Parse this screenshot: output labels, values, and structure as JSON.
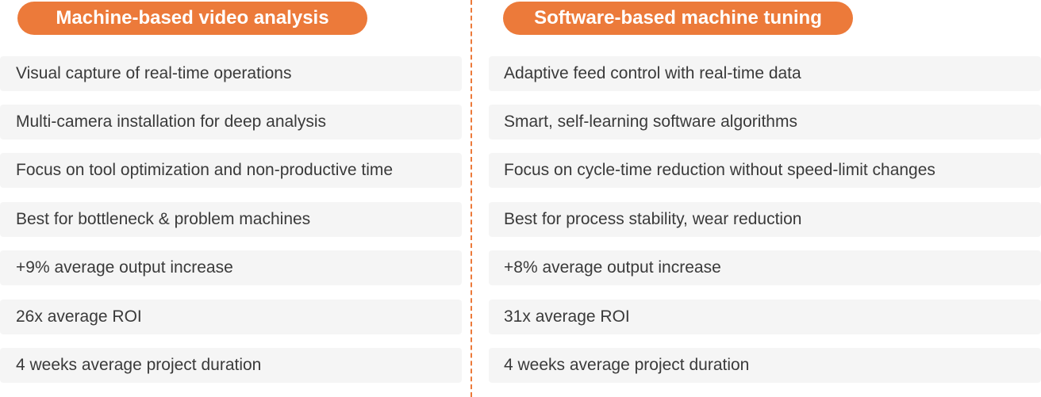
{
  "left": {
    "title": "Machine-based video analysis",
    "items": [
      "Visual capture of real-time operations",
      "Multi-camera installation for deep analysis",
      "Focus on tool optimization and non-productive time",
      "Best for bottleneck & problem machines",
      "+9% average output increase",
      "26x average ROI",
      "4 weeks average project duration"
    ]
  },
  "right": {
    "title": "Software-based machine tuning",
    "items": [
      "Adaptive feed control with real-time data",
      "Smart, self-learning software algorithms",
      "Focus on cycle-time reduction without speed-limit changes",
      "Best for process stability, wear reduction",
      "+8% average output increase",
      "31x average ROI",
      "4 weeks average project duration"
    ]
  },
  "colors": {
    "accent": "#ec7a3a",
    "row_background": "#f5f5f5",
    "text": "#3a3a3a"
  }
}
